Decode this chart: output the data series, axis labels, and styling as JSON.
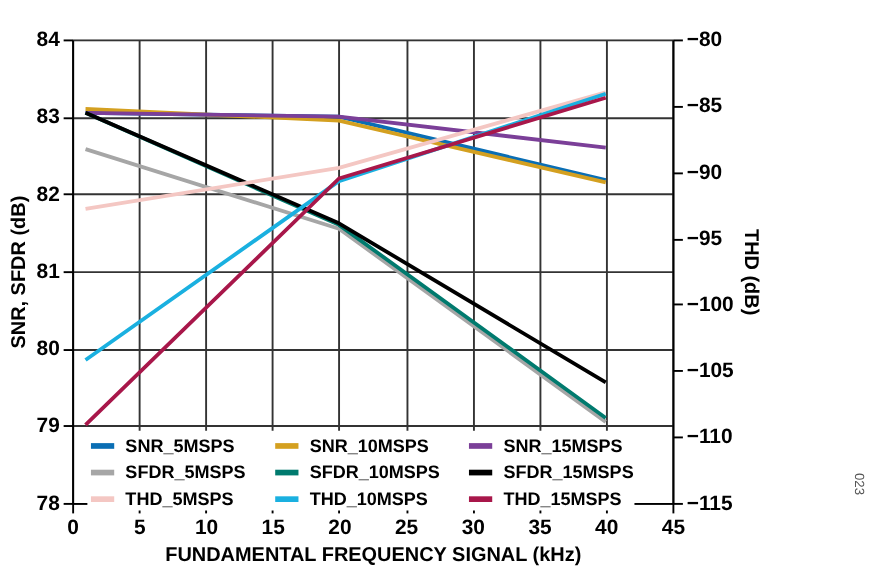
{
  "chart_data": {
    "type": "line",
    "xlabel": "FUNDAMENTAL FREQUENCY SIGNAL (kHz)",
    "ylabel": "SNR, SFDR (dB)",
    "y2label": "THD (dB)",
    "xlim": [
      0,
      45
    ],
    "xticks": [
      0,
      5,
      10,
      15,
      20,
      25,
      30,
      35,
      40,
      45
    ],
    "ylim": [
      78,
      84
    ],
    "yticks": [
      78,
      79,
      80,
      81,
      82,
      83,
      84
    ],
    "y2lim": [
      -115,
      -80
    ],
    "y2ticks": [
      -115,
      -110,
      -105,
      -100,
      -95,
      -90,
      -85,
      -80
    ],
    "grid": true,
    "legend": "bottom",
    "marker": "none",
    "line_style": "solid",
    "annotations": [
      "023"
    ],
    "series": [
      {
        "name": "SNR_5MSPS",
        "color": "#0a6eb4",
        "x": [
          1,
          20,
          40
        ],
        "values": [
          83.05,
          83.0,
          82.18
        ]
      },
      {
        "name": "SNR_10MSPS",
        "color": "#d4a020",
        "x": [
          1,
          20,
          40
        ],
        "values": [
          83.1,
          82.95,
          82.15
        ]
      },
      {
        "name": "SNR_15MSPS",
        "color": "#7b3f98",
        "x": [
          1,
          20,
          40
        ],
        "values": [
          83.05,
          83.0,
          82.6
        ]
      },
      {
        "name": "SFDR_5MSPS",
        "color": "#a6a6a6",
        "x": [
          1,
          20,
          40
        ],
        "values": [
          82.58,
          81.55,
          79.05
        ]
      },
      {
        "name": "SFDR_10MSPS",
        "color": "#007a6e",
        "x": [
          1,
          20,
          40
        ],
        "values": [
          83.05,
          81.6,
          79.1
        ]
      },
      {
        "name": "SFDR_15MSPS",
        "color": "#000000",
        "x": [
          1,
          20,
          40
        ],
        "values": [
          83.05,
          81.62,
          79.56
        ]
      },
      {
        "name": "THD_5MSPS",
        "color": "#f4c7c3",
        "axis": "y2",
        "x": [
          1,
          20,
          40
        ],
        "values": [
          -92.8,
          -89.7,
          -84.0
        ]
      },
      {
        "name": "THD_10MSPS",
        "color": "#1ab0e0",
        "axis": "y2",
        "x": [
          1,
          20,
          40
        ],
        "values": [
          -104.2,
          -90.7,
          -84.1
        ]
      },
      {
        "name": "THD_15MSPS",
        "color": "#a8174a",
        "axis": "y2",
        "x": [
          1,
          20,
          40
        ],
        "values": [
          -109.1,
          -90.5,
          -84.4
        ]
      }
    ]
  }
}
